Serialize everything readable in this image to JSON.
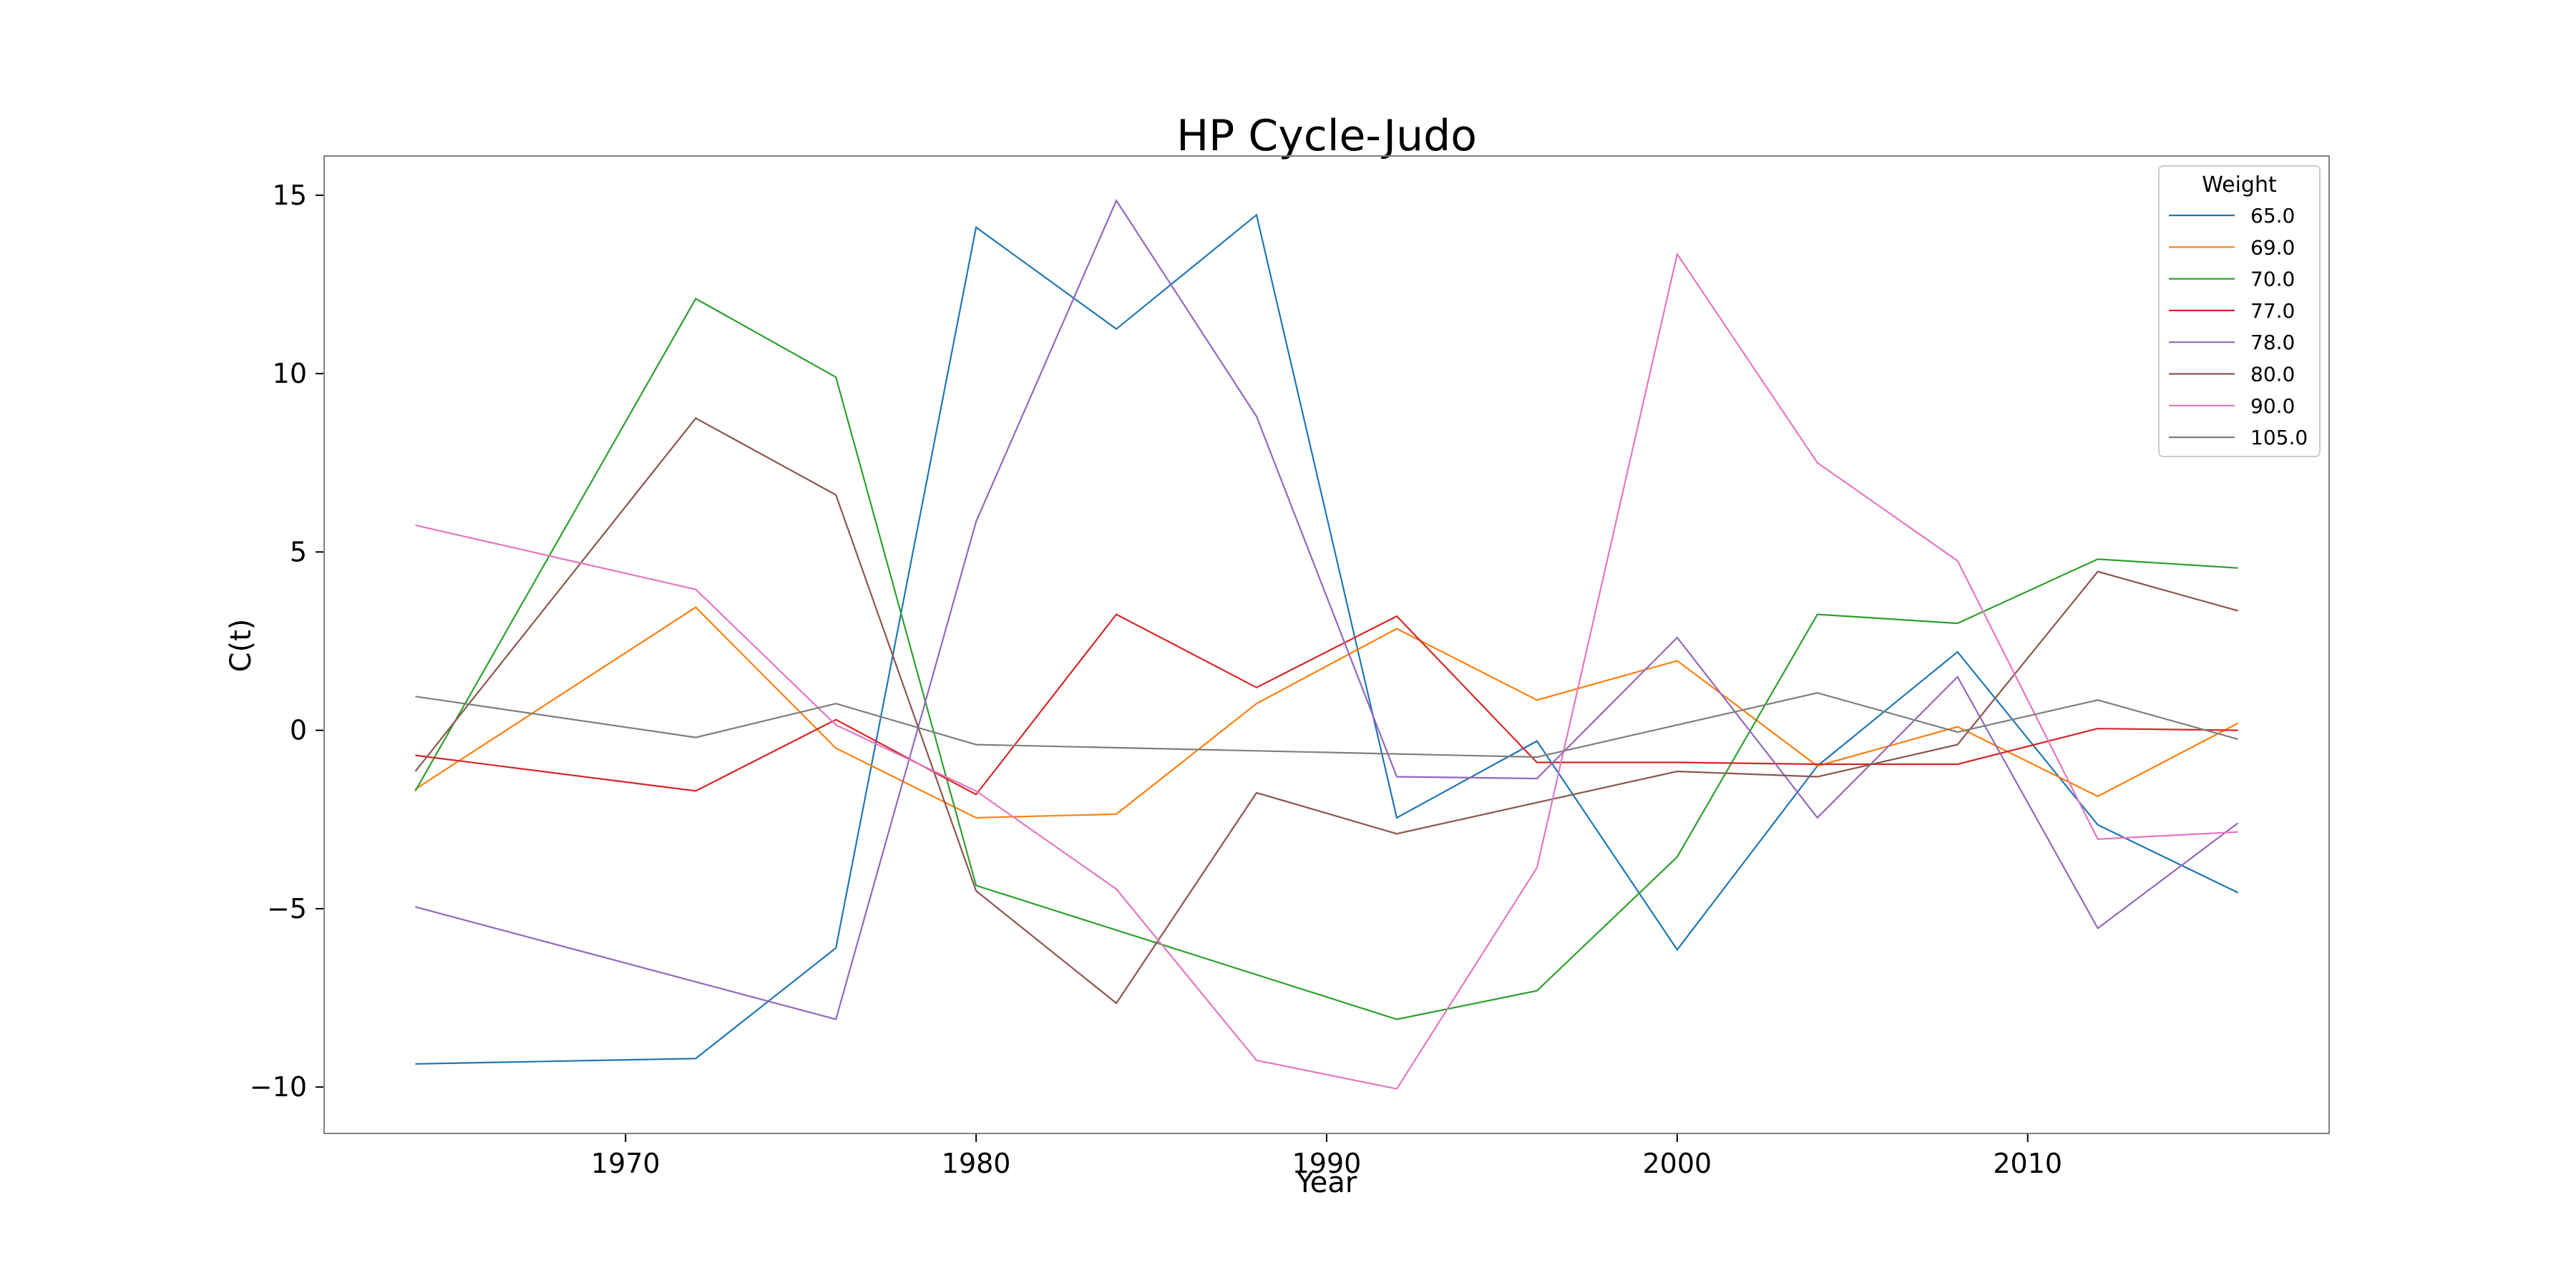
{
  "chart_data": {
    "type": "line",
    "title": "HP Cycle-Judo",
    "xlabel": "Year",
    "ylabel": "C(t)",
    "xlim": [
      1961.4,
      2018.6
    ],
    "ylim": [
      -11.3,
      16.1
    ],
    "x_ticks": [
      1970,
      1980,
      1990,
      2000,
      2010
    ],
    "y_ticks": [
      -10,
      -5,
      0,
      5,
      10,
      15
    ],
    "y_tick_labels": [
      "−10",
      "−5",
      "0",
      "5",
      "10",
      "15"
    ],
    "grid": false,
    "legend": {
      "title": "Weight",
      "placement": "top-right"
    },
    "x": [
      1964,
      1972,
      1976,
      1980,
      1984,
      1988,
      1992,
      1996,
      2000,
      2004,
      2008,
      2012,
      2016
    ],
    "series": [
      {
        "name": "65.0",
        "color": "#1f77b4",
        "values": [
          -9.35,
          -9.2,
          -6.1,
          14.1,
          11.25,
          14.45,
          -2.45,
          -0.3,
          -6.15,
          -1.0,
          2.2,
          -2.65,
          -4.55
        ]
      },
      {
        "name": "69.0",
        "color": "#ff7f0e",
        "values": [
          -1.65,
          3.45,
          -0.5,
          -2.45,
          -2.35,
          0.75,
          2.85,
          0.85,
          1.95,
          -1.0,
          0.1,
          -1.85,
          0.2
        ]
      },
      {
        "name": "70.0",
        "color": "#2ca02c",
        "values": [
          -1.7,
          12.1,
          9.9,
          -4.35,
          null,
          null,
          -8.1,
          -7.3,
          -3.55,
          3.25,
          3.0,
          4.8,
          4.55
        ]
      },
      {
        "name": "77.0",
        "color": "#d62728",
        "values": [
          -0.7,
          -1.7,
          0.3,
          -1.8,
          3.25,
          1.2,
          3.2,
          -0.9,
          -0.9,
          -0.95,
          -0.95,
          0.05,
          0.0
        ]
      },
      {
        "name": "78.0",
        "color": "#9467bd",
        "values": [
          -4.95,
          null,
          -8.1,
          5.85,
          14.85,
          8.8,
          -1.3,
          -1.35,
          2.6,
          -2.45,
          1.5,
          -5.55,
          -2.6
        ]
      },
      {
        "name": "80.0",
        "color": "#8c564b",
        "values": [
          -1.15,
          8.75,
          6.6,
          -4.5,
          -7.65,
          -1.75,
          -2.9,
          null,
          -1.15,
          -1.3,
          -0.4,
          4.45,
          3.35
        ]
      },
      {
        "name": "90.0",
        "color": "#e377c2",
        "values": [
          5.75,
          3.95,
          0.15,
          -1.7,
          -4.45,
          -9.25,
          -10.05,
          -3.85,
          13.35,
          7.5,
          4.75,
          -3.05,
          -2.85
        ]
      },
      {
        "name": "105.0",
        "color": "#7f7f7f",
        "values": [
          0.95,
          -0.2,
          0.75,
          -0.4,
          null,
          null,
          null,
          -0.75,
          null,
          1.05,
          -0.05,
          0.85,
          -0.25
        ]
      }
    ]
  }
}
